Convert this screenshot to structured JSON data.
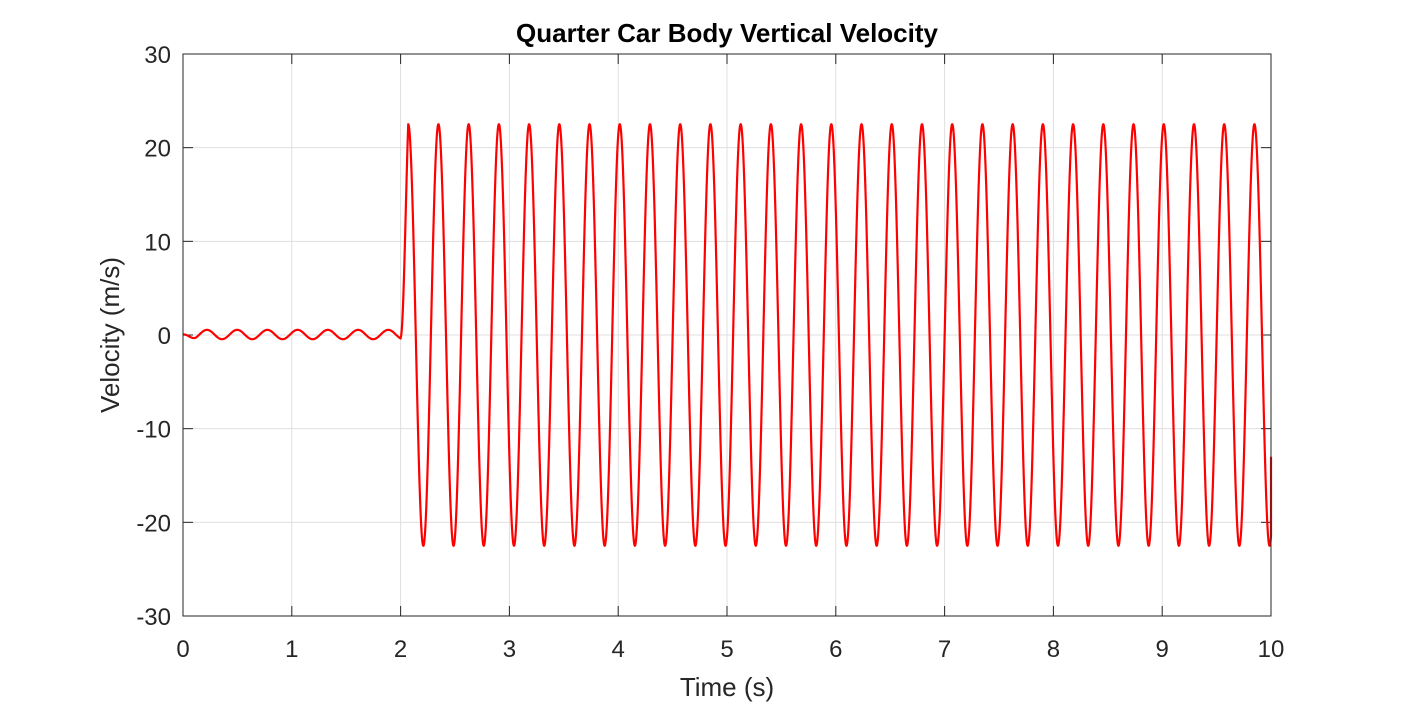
{
  "chart_data": {
    "type": "line",
    "title": "Quarter Car Body Vertical Velocity",
    "xlabel": "Time (s)",
    "ylabel": "Velocity (m/s)",
    "xlim": [
      0,
      10
    ],
    "ylim": [
      -30,
      30
    ],
    "xticks": [
      0,
      1,
      2,
      3,
      4,
      5,
      6,
      7,
      8,
      9,
      10
    ],
    "xtick_labels": [
      "0",
      "1",
      "2",
      "3",
      "4",
      "5",
      "6",
      "7",
      "8",
      "9",
      "10"
    ],
    "yticks": [
      -30,
      -20,
      -10,
      0,
      10,
      20,
      30
    ],
    "ytick_labels": [
      "-30",
      "-20",
      "-10",
      "0",
      "10",
      "20",
      "30"
    ],
    "grid": true,
    "legend": "none",
    "series": [
      {
        "color": "#ff0000",
        "segments": [
          {
            "t_start": 0,
            "t_end": 2,
            "form": "sinusoid",
            "amplitude": 0.5,
            "frequency_hz": 3.6,
            "offset": 0.05,
            "peak_times": [
              0.22,
              0.5,
              0.78,
              1.06,
              1.33,
              1.61,
              1.89
            ]
          },
          {
            "t_start": 2,
            "t_end": 10,
            "form": "sinusoid",
            "amplitude": 22.5,
            "frequency_hz": 3.6,
            "offset": 0,
            "peak_times": [
              2.07,
              2.35,
              2.63,
              2.9,
              3.18,
              3.46,
              3.73,
              4.01,
              4.29,
              4.57,
              4.84,
              5.12,
              5.4,
              5.68,
              5.96,
              6.23,
              6.51,
              6.79,
              7.07,
              7.34,
              7.62,
              7.9,
              8.18,
              8.46,
              8.73,
              9.01,
              9.29,
              9.57,
              9.84
            ],
            "end_value": -13
          }
        ]
      }
    ]
  }
}
